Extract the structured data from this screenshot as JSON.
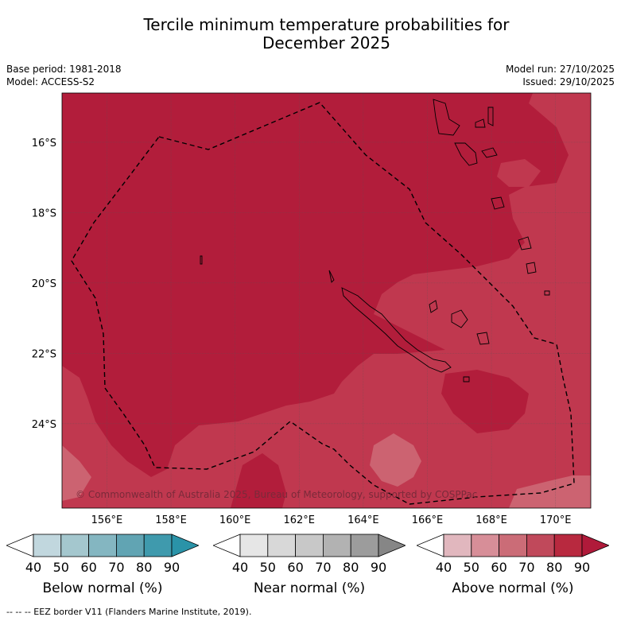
{
  "title_line1": "Tercile minimum temperature probabilities for",
  "title_line2": "December 2025",
  "base_period": "Base period: 1981-2018",
  "model": "Model: ACCESS-S2",
  "model_run": "Model run: 27/10/2025",
  "issued": "Issued: 29/10/2025",
  "copyright": "© Commonwealth of Australia 2025, Bureau of Meteorology, supported by COSPPac",
  "footer": "--  --  -- EEZ border V11 (Flanders Marine Institute, 2019).",
  "map": {
    "lon_range": [
      154.6,
      171.1
    ],
    "lat_range": [
      -14.6,
      -26.4
    ],
    "lon_ticks": [
      "156°E",
      "158°E",
      "160°E",
      "162°E",
      "164°E",
      "166°E",
      "168°E",
      "170°E"
    ],
    "lon_values": [
      156,
      158,
      160,
      162,
      164,
      166,
      168,
      170
    ],
    "lat_ticks": [
      "16°S",
      "18°S",
      "20°S",
      "22°S",
      "24°S"
    ],
    "lat_values": [
      -16,
      -18,
      -20,
      -22,
      -24
    ],
    "colors": {
      "above_80": "#b21d3b",
      "above_70": "#c0384f",
      "above_60": "#cc6371",
      "land_line": "#000000",
      "eez_line": "#000000",
      "grid_line": "#555555"
    }
  },
  "colorbars": [
    {
      "label": "Below normal (%)",
      "ticks": [
        "40",
        "50",
        "60",
        "70",
        "80",
        "90"
      ],
      "colors": [
        "#ffffff",
        "#c1d7de",
        "#a4c7ce",
        "#84b6c1",
        "#61a4b3",
        "#3f9aad",
        "#2a93a8"
      ]
    },
    {
      "label": "Near normal (%)",
      "ticks": [
        "40",
        "50",
        "60",
        "70",
        "80",
        "90"
      ],
      "colors": [
        "#ffffff",
        "#e6e6e6",
        "#d8d8d8",
        "#c8c8c8",
        "#b2b2b2",
        "#9c9c9c",
        "#868686"
      ]
    },
    {
      "label": "Above normal (%)",
      "ticks": [
        "40",
        "50",
        "60",
        "70",
        "80",
        "90"
      ],
      "colors": [
        "#ffffff",
        "#e1b7be",
        "#d78e98",
        "#cb6c77",
        "#c0495b",
        "#b8293f",
        "#b01a3a"
      ]
    }
  ]
}
